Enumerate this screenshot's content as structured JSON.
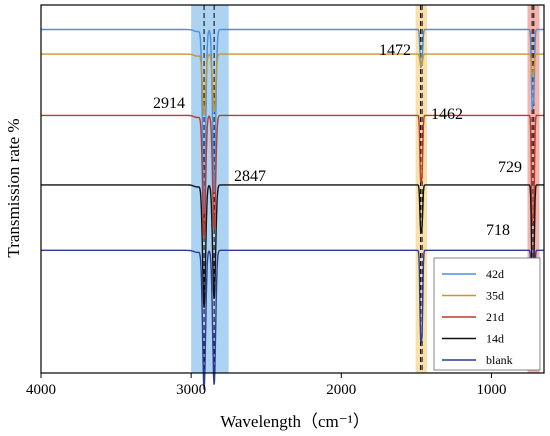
{
  "chart_data": {
    "type": "line",
    "title": "",
    "xlabel": "Wavelength（cm⁻¹）",
    "ylabel": "Transmission rate %",
    "xlim": [
      4000,
      650
    ],
    "x_reversed": true,
    "x_ticks": [
      4000,
      3000,
      2000,
      1000
    ],
    "y_ticks_shown": false,
    "grid": false,
    "legend_position": "bottom-right",
    "highlight_bands": [
      {
        "from": 3000,
        "to": 2750,
        "color": "#9ecbef"
      },
      {
        "from": 1505,
        "to": 1430,
        "color": "#f6dc9a"
      },
      {
        "from": 760,
        "to": 680,
        "color": "#f0a8a0"
      }
    ],
    "reference_lines": [
      2914,
      2847,
      1472,
      1462,
      729,
      718
    ],
    "annotations": [
      {
        "text": "2914",
        "x": 2914
      },
      {
        "text": "2847",
        "x": 2847
      },
      {
        "text": "1472",
        "x": 1472
      },
      {
        "text": "1462",
        "x": 1462
      },
      {
        "text": "729",
        "x": 729
      },
      {
        "text": "718",
        "x": 718
      }
    ],
    "series": [
      {
        "name": "42d",
        "color": "#4a90e2",
        "baseline": 8.4,
        "peaks": [
          [
            2914,
            4.5
          ],
          [
            2847,
            4.0
          ],
          [
            1472,
            0.8
          ],
          [
            1462,
            0.7
          ],
          [
            729,
            1.8
          ],
          [
            718,
            1.6
          ]
        ]
      },
      {
        "name": "35d",
        "color": "#c9962e",
        "baseline": 7.8,
        "peaks": [
          [
            2914,
            1.5
          ],
          [
            2847,
            1.4
          ],
          [
            1472,
            0.25
          ],
          [
            1462,
            0.2
          ],
          [
            729,
            0.5
          ],
          [
            718,
            0.4
          ]
        ]
      },
      {
        "name": "21d",
        "color": "#c0392b",
        "baseline": 6.3,
        "peaks": [
          [
            2914,
            3.0
          ],
          [
            2847,
            2.8
          ],
          [
            1472,
            1.4
          ],
          [
            1462,
            1.3
          ],
          [
            729,
            2.4
          ],
          [
            718,
            2.2
          ]
        ]
      },
      {
        "name": "14d",
        "color": "#111111",
        "baseline": 4.6,
        "peaks": [
          [
            2914,
            3.0
          ],
          [
            2847,
            2.8
          ],
          [
            1472,
            1.0
          ],
          [
            1462,
            0.9
          ],
          [
            729,
            2.0
          ],
          [
            718,
            1.8
          ]
        ]
      },
      {
        "name": "blank",
        "color": "#2c3c99",
        "baseline": 3.0,
        "peaks": [
          [
            2914,
            3.4
          ],
          [
            2847,
            3.3
          ],
          [
            1472,
            1.9
          ],
          [
            1462,
            1.8
          ],
          [
            729,
            2.6
          ],
          [
            718,
            2.5
          ]
        ]
      }
    ]
  },
  "colors": {
    "axis": "#000000"
  }
}
